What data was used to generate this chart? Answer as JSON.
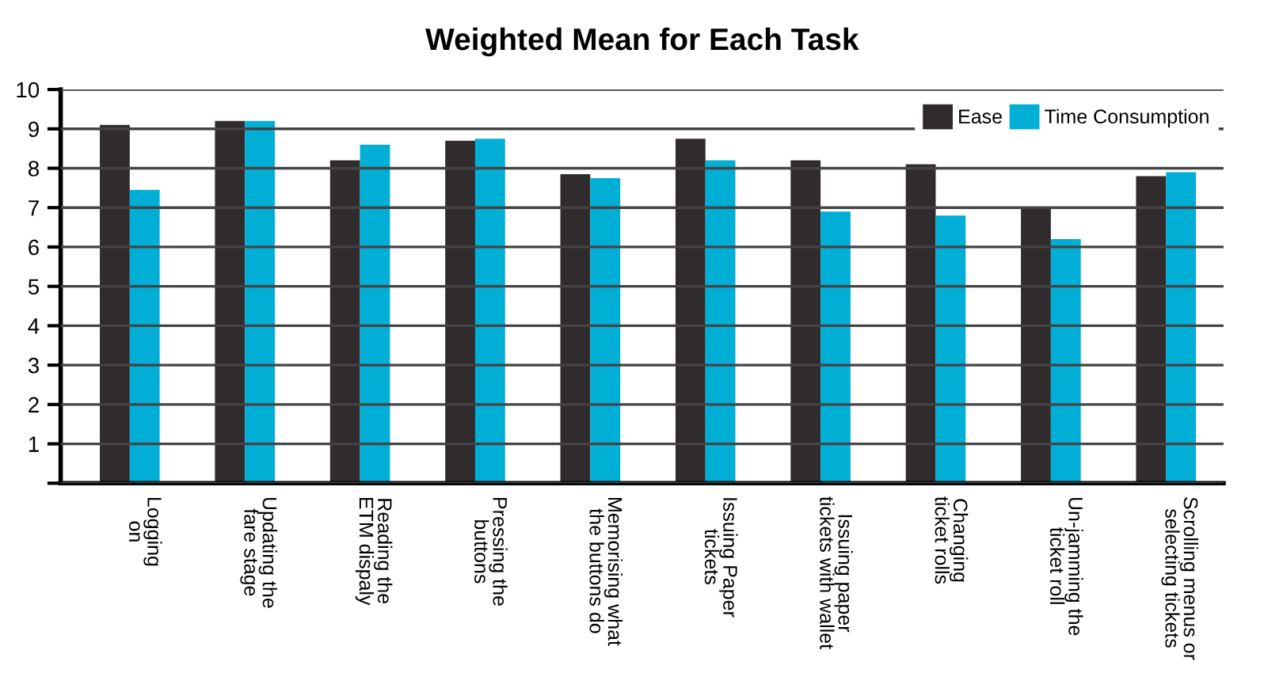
{
  "chart_data": {
    "type": "bar",
    "title": "Weighted Mean for Each Task",
    "categories": [
      "Logging\non",
      "Updating the\nfare stage",
      "Reading the\nETM dispaly",
      "Pressing the\nbuttons",
      "Memorising what\nthe buttons do",
      "Issuing Paper\ntickets",
      "Issuing paper\ntickets with wallet",
      "Changing\nticket rolls",
      "Un-jamming the\nticket roll",
      "Scrolling menus or\nselecting tickets"
    ],
    "series": [
      {
        "name": "Ease",
        "color": "#302b2d",
        "values": [
          9.1,
          9.2,
          8.2,
          8.7,
          7.85,
          8.75,
          8.2,
          8.1,
          7.0,
          7.8
        ]
      },
      {
        "name": "Time Consumption",
        "color": "#00aed6",
        "values": [
          7.45,
          9.2,
          8.6,
          8.75,
          7.75,
          8.2,
          6.9,
          6.8,
          6.2,
          7.9
        ]
      }
    ],
    "ylim": [
      0,
      10
    ],
    "yticks": [
      {
        "value": 0,
        "label": null
      },
      1,
      2,
      3,
      4,
      5,
      6,
      7,
      8,
      9,
      10
    ],
    "grid": "y",
    "legend": "top right"
  }
}
